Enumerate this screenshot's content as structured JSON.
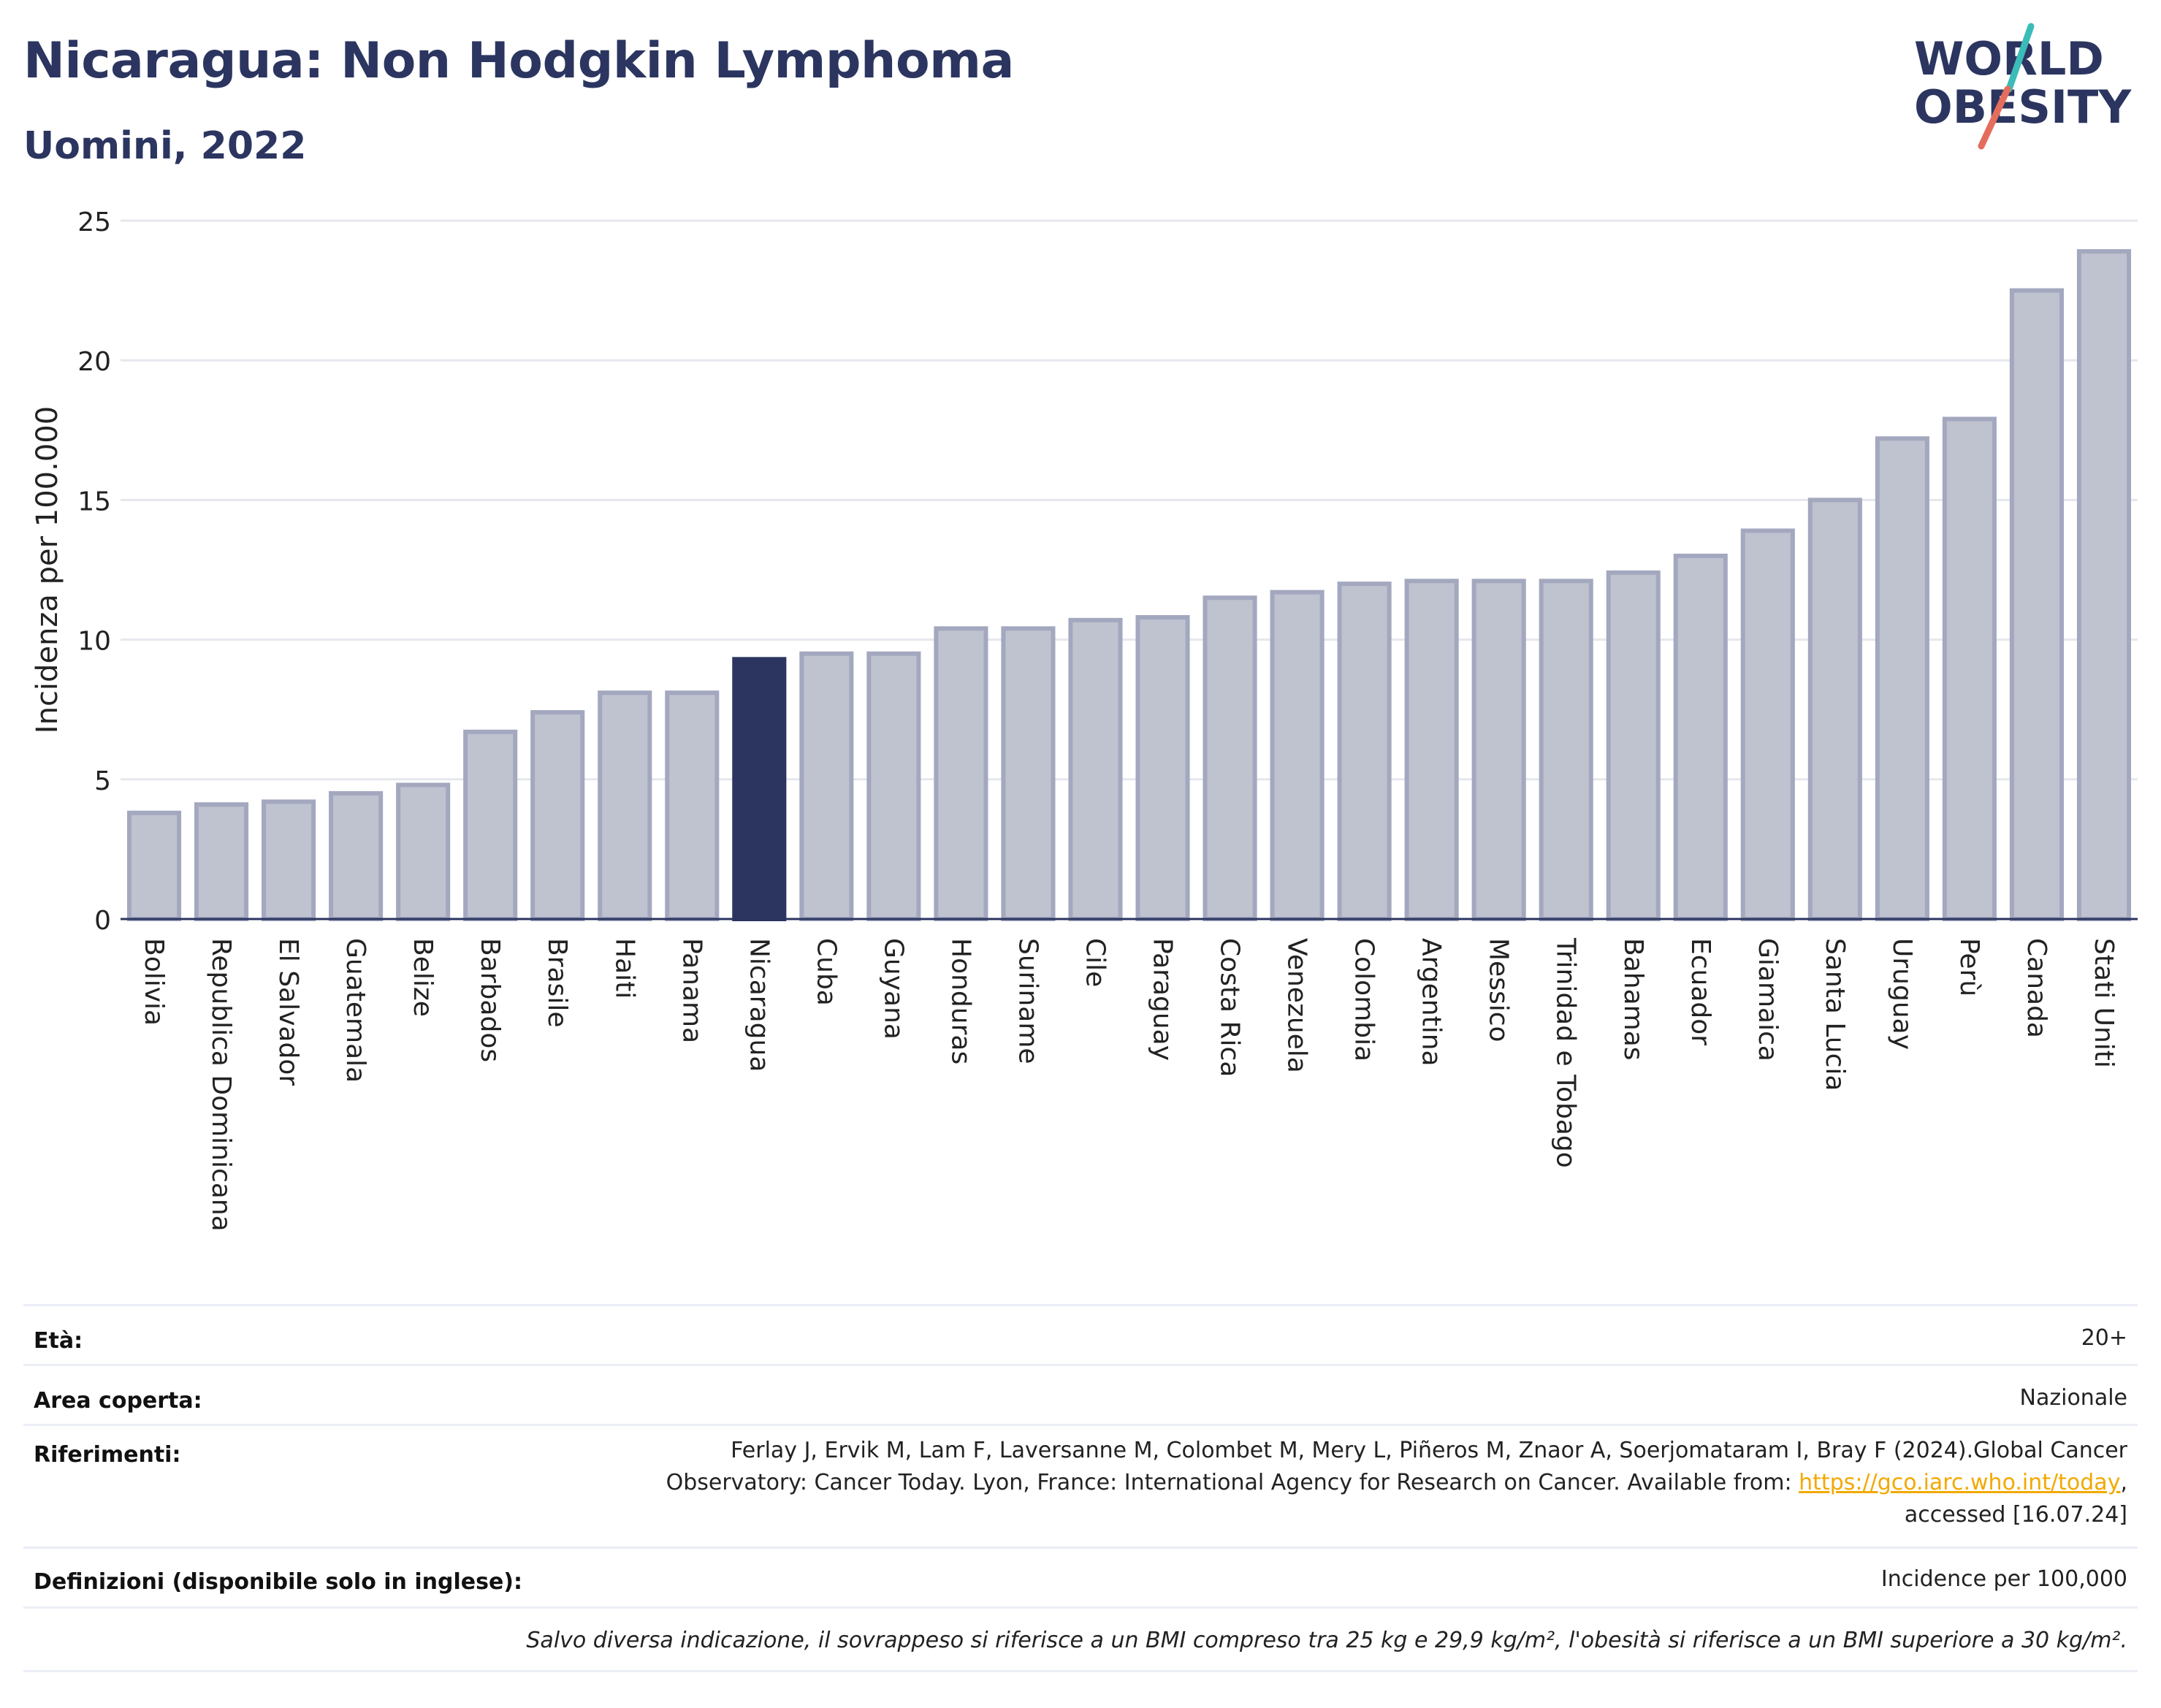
{
  "header": {
    "title": "Nicaragua: Non Hodgkin Lymphoma",
    "subtitle": "Uomini, 2022"
  },
  "logo": {
    "line1": "WORLD",
    "line2": "OBESITY"
  },
  "colors": {
    "highlight": "#2b3560",
    "bar": "#bfc2cf",
    "bar_border": "#a3a8bf",
    "accent_teal": "#3bbcb8",
    "accent_coral": "#e46d5c"
  },
  "chart_data": {
    "type": "bar",
    "ylabel": "Incidenza per 100.000",
    "ylim": [
      0,
      25
    ],
    "yticks": [
      0,
      5,
      10,
      15,
      20,
      25
    ],
    "grid": true,
    "highlight": "Nicaragua",
    "categories": [
      "Bolivia",
      "Republica Dominicana",
      "El Salvador",
      "Guatemala",
      "Belize",
      "Barbados",
      "Brasile",
      "Haiti",
      "Panama",
      "Nicaragua",
      "Cuba",
      "Guyana",
      "Honduras",
      "Suriname",
      "Cile",
      "Paraguay",
      "Costa Rica",
      "Venezuela",
      "Colombia",
      "Argentina",
      "Messico",
      "Trinidad e Tobago",
      "Bahamas",
      "Ecuador",
      "Giamaica",
      "Santa Lucia",
      "Uruguay",
      "Perù",
      "Canada",
      "Stati Uniti"
    ],
    "values": [
      3.8,
      4.1,
      4.2,
      4.5,
      4.8,
      6.7,
      7.4,
      8.1,
      8.1,
      9.3,
      9.5,
      9.5,
      10.4,
      10.4,
      10.7,
      10.8,
      11.5,
      11.7,
      12.0,
      12.1,
      12.1,
      12.1,
      12.4,
      13.0,
      13.9,
      15.0,
      17.2,
      17.9,
      22.5,
      23.9
    ]
  },
  "info": {
    "age_label": "Età:",
    "age_value": "20+",
    "area_label": "Area coperta:",
    "area_value": "Nazionale",
    "refs_label": "Riferimenti:",
    "refs_line1": "Ferlay J, Ervik M, Lam F, Laversanne M, Colombet M, Mery L, Piñeros M, Znaor A, Soerjomataram I, Bray F (2024).Global Cancer",
    "refs_line2": "Observatory: Cancer Today. Lyon, France: International Agency for Research on Cancer. Available from: ",
    "refs_link": "https://gco.iarc.who.int/today",
    "refs_line3": "accessed [16.07.24]",
    "defs_label": "Definizioni (disponibile solo in inglese):",
    "defs_value": "Incidence per 100,000",
    "note": "Salvo diversa indicazione, il sovrappeso si riferisce a un BMI compreso tra 25 kg e 29,9 kg/m², l'obesità si riferisce a un BMI superiore a 30 kg/m²."
  }
}
